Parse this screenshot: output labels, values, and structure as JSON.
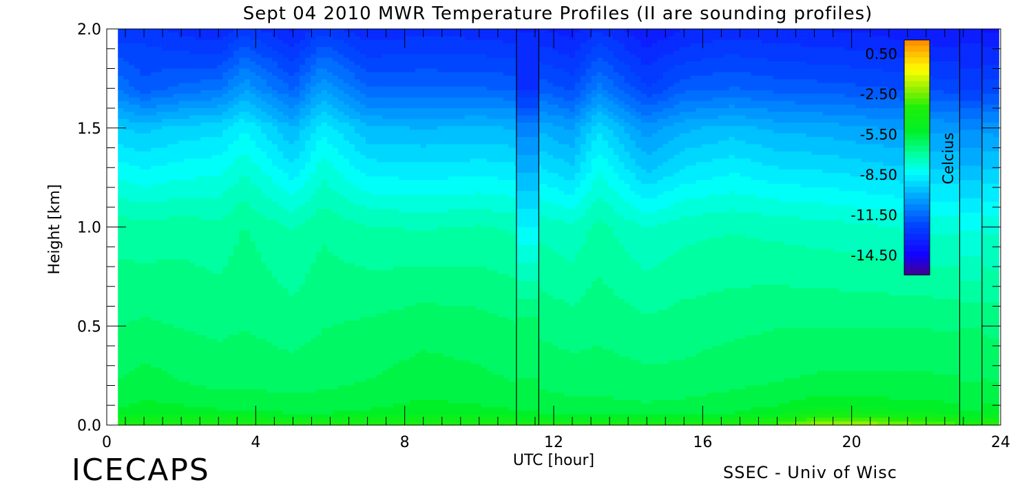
{
  "chart_data": {
    "type": "heatmap",
    "title": "Sept 04 2010 MWR Temperature Profiles (II are sounding profiles)",
    "xlabel": "UTC [hour]",
    "ylabel": "Height [km]",
    "xlim": [
      0,
      24
    ],
    "ylim": [
      0,
      2.0
    ],
    "x_ticks": [
      "0",
      "4",
      "8",
      "12",
      "16",
      "20",
      "24"
    ],
    "y_ticks": [
      "0.0",
      "0.5",
      "1.0",
      "1.5",
      "2.0"
    ],
    "colorbar": {
      "label": "Celcius",
      "min": -16.0,
      "max": 1.5,
      "tick_values": [
        0.5,
        -2.5,
        -5.5,
        -8.5,
        -11.5,
        -14.5
      ],
      "tick_labels": [
        "0.50",
        "-2.50",
        "-5.50",
        "-8.50",
        "-11.50",
        "-14.50"
      ]
    },
    "data_start_hour": 0.3,
    "data_end_hour": 23.95,
    "heights_km": [
      0.0,
      0.03,
      0.06,
      0.1,
      0.2,
      0.5,
      1.0,
      1.3,
      1.5,
      1.7,
      2.0
    ],
    "profile_keys": [
      {
        "hour": 0.3,
        "temps": [
          -3.6,
          -4.6,
          -5.4,
          -5.6,
          -5.9,
          -6.4,
          -7.0,
          -8.4,
          -9.4,
          -11.2,
          -12.9
        ]
      },
      {
        "hour": 1.0,
        "temps": [
          -3.6,
          -4.5,
          -5.2,
          -5.4,
          -5.7,
          -6.3,
          -7.1,
          -8.6,
          -9.6,
          -11.9,
          -12.7
        ]
      },
      {
        "hour": 2.0,
        "temps": [
          -3.5,
          -4.5,
          -5.3,
          -5.5,
          -5.9,
          -6.4,
          -7.0,
          -8.4,
          -9.3,
          -11.5,
          -13.1
        ]
      },
      {
        "hour": 3.0,
        "temps": [
          -3.6,
          -4.6,
          -5.4,
          -5.6,
          -6.0,
          -6.5,
          -7.1,
          -8.3,
          -9.2,
          -11.3,
          -13.4
        ]
      },
      {
        "hour": 3.7,
        "temps": [
          -3.6,
          -4.6,
          -5.4,
          -5.6,
          -6.0,
          -6.4,
          -6.8,
          -7.8,
          -8.6,
          -10.4,
          -12.7
        ]
      },
      {
        "hour": 5.0,
        "temps": [
          -3.7,
          -4.7,
          -5.5,
          -5.7,
          -6.1,
          -6.6,
          -7.3,
          -8.9,
          -9.9,
          -11.7,
          -13.5
        ]
      },
      {
        "hour": 5.8,
        "temps": [
          -3.7,
          -4.7,
          -5.5,
          -5.7,
          -6.0,
          -6.4,
          -6.9,
          -7.9,
          -8.7,
          -10.3,
          -12.7
        ]
      },
      {
        "hour": 7.0,
        "temps": [
          -3.6,
          -4.6,
          -5.4,
          -5.6,
          -5.9,
          -6.3,
          -7.2,
          -8.8,
          -9.8,
          -11.6,
          -13.3
        ]
      },
      {
        "hour": 8.5,
        "temps": [
          -3.5,
          -4.5,
          -5.3,
          -5.4,
          -5.7,
          -6.1,
          -7.3,
          -8.9,
          -9.9,
          -11.6,
          -13.1
        ]
      },
      {
        "hour": 10.0,
        "temps": [
          -3.6,
          -4.6,
          -5.3,
          -5.5,
          -5.8,
          -6.2,
          -7.2,
          -8.8,
          -9.8,
          -11.6,
          -13.2
        ]
      },
      {
        "hour": 10.8,
        "temps": [
          -3.6,
          -4.6,
          -5.4,
          -5.6,
          -5.9,
          -6.3,
          -7.3,
          -8.9,
          -9.9,
          -11.7,
          -13.3
        ]
      },
      {
        "hour": 11.7,
        "temps": [
          -3.7,
          -4.7,
          -5.5,
          -5.7,
          -6.0,
          -6.5,
          -7.4,
          -9.0,
          -10.0,
          -11.8,
          -13.4
        ]
      },
      {
        "hour": 12.5,
        "temps": [
          -3.8,
          -4.8,
          -5.6,
          -5.8,
          -6.1,
          -6.6,
          -7.6,
          -9.4,
          -10.4,
          -12.2,
          -13.6
        ]
      },
      {
        "hour": 13.2,
        "temps": [
          -3.7,
          -4.8,
          -5.6,
          -5.8,
          -6.1,
          -6.5,
          -7.1,
          -8.2,
          -9.1,
          -11.0,
          -13.0
        ]
      },
      {
        "hour": 14.5,
        "temps": [
          -3.8,
          -4.9,
          -5.7,
          -5.9,
          -6.2,
          -6.7,
          -7.7,
          -9.6,
          -10.6,
          -12.5,
          -13.8
        ]
      },
      {
        "hour": 15.5,
        "temps": [
          -3.8,
          -4.8,
          -5.6,
          -5.8,
          -6.2,
          -6.6,
          -7.4,
          -9.0,
          -10.0,
          -11.8,
          -13.4
        ]
      },
      {
        "hour": 16.8,
        "temps": [
          -3.6,
          -4.7,
          -5.5,
          -5.7,
          -6.0,
          -6.5,
          -7.3,
          -8.7,
          -9.7,
          -11.6,
          -13.2
        ]
      },
      {
        "hour": 18.0,
        "temps": [
          -3.0,
          -4.1,
          -5.1,
          -5.5,
          -5.9,
          -6.4,
          -7.4,
          -9.0,
          -10.0,
          -11.8,
          -13.3
        ]
      },
      {
        "hour": 19.3,
        "temps": [
          -1.8,
          -3.0,
          -4.4,
          -5.2,
          -5.8,
          -6.4,
          -7.5,
          -9.1,
          -10.1,
          -11.9,
          -13.4
        ]
      },
      {
        "hour": 20.5,
        "temps": [
          -2.0,
          -3.2,
          -4.6,
          -5.3,
          -5.8,
          -6.4,
          -7.6,
          -9.3,
          -10.3,
          -12.0,
          -13.5
        ]
      },
      {
        "hour": 22.0,
        "temps": [
          -2.8,
          -3.8,
          -5.0,
          -5.4,
          -5.8,
          -6.4,
          -7.8,
          -9.5,
          -10.4,
          -12.2,
          -13.8
        ]
      },
      {
        "hour": 23.95,
        "temps": [
          -3.3,
          -4.3,
          -5.2,
          -5.5,
          -5.9,
          -6.5,
          -7.8,
          -9.5,
          -10.5,
          -12.3,
          -13.9
        ]
      }
    ],
    "soundings": [
      {
        "start_hour": 11.0,
        "end_hour": 11.6,
        "temps": [
          -3.8,
          -4.8,
          -5.4,
          -5.6,
          -5.9,
          -6.2,
          -8.6,
          -10.0,
          -11.0,
          -13.0,
          -13.4
        ]
      },
      {
        "start_hour": 22.9,
        "end_hour": 23.5,
        "temps": [
          -3.8,
          -4.8,
          -5.4,
          -5.6,
          -5.9,
          -6.4,
          -8.2,
          -9.8,
          -10.8,
          -12.6,
          -13.6
        ]
      }
    ]
  },
  "footer": {
    "brand_left": "ICECAPS",
    "brand_right": "SSEC - Univ of Wisc"
  }
}
